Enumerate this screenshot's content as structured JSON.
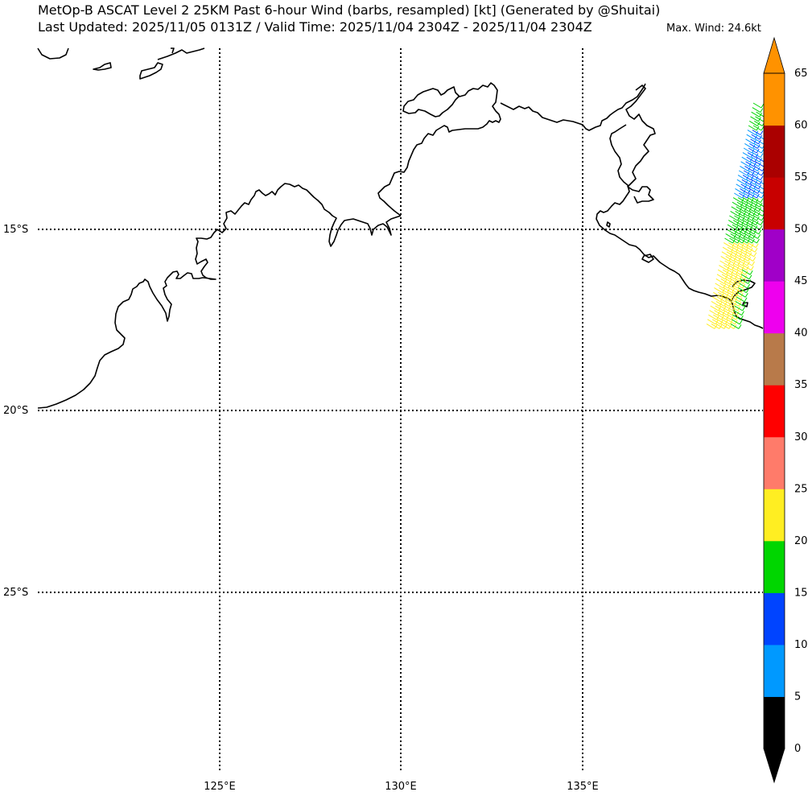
{
  "title": {
    "line1": "MetOp-B ASCAT Level 2 25KM Past 6-hour Wind (barbs, resampled) [kt] (Generated by @Shuitai)",
    "line2": "Last Updated: 2025/11/05 0131Z / Valid Time: 2025/11/04 2304Z - 2025/11/04 2304Z",
    "max_wind": "Max. Wind: 24.6kt"
  },
  "map": {
    "lat_labels": [
      "15°S",
      "20°S",
      "25°S"
    ],
    "lon_labels": [
      "125°E",
      "130°E",
      "135°E"
    ],
    "gridline_style": "dotted"
  },
  "colorbar": {
    "ticks": [
      "0",
      "5",
      "10",
      "15",
      "20",
      "25",
      "30",
      "35",
      "40",
      "45",
      "50",
      "55",
      "60",
      "65"
    ],
    "bins": [
      {
        "range": "0-5",
        "color": "#000000"
      },
      {
        "range": "5-10",
        "color": "#0099ff"
      },
      {
        "range": "10-15",
        "color": "#0044ff"
      },
      {
        "range": "15-20",
        "color": "#00d600"
      },
      {
        "range": "20-25",
        "color": "#ffee22"
      },
      {
        "range": "25-30",
        "color": "#ff7b6a"
      },
      {
        "range": "30-35",
        "color": "#ff0000"
      },
      {
        "range": "35-40",
        "color": "#b87a4a"
      },
      {
        "range": "40-45",
        "color": "#ee00ee"
      },
      {
        "range": "45-50",
        "color": "#a000c8"
      },
      {
        "range": "50-55",
        "color": "#c80000"
      },
      {
        "range": "55-60",
        "color": "#aa0000"
      },
      {
        "range": "60-65",
        "color": "#ff9200"
      }
    ],
    "extend_low_color": "#000000",
    "extend_high_color": "#ff9200"
  }
}
